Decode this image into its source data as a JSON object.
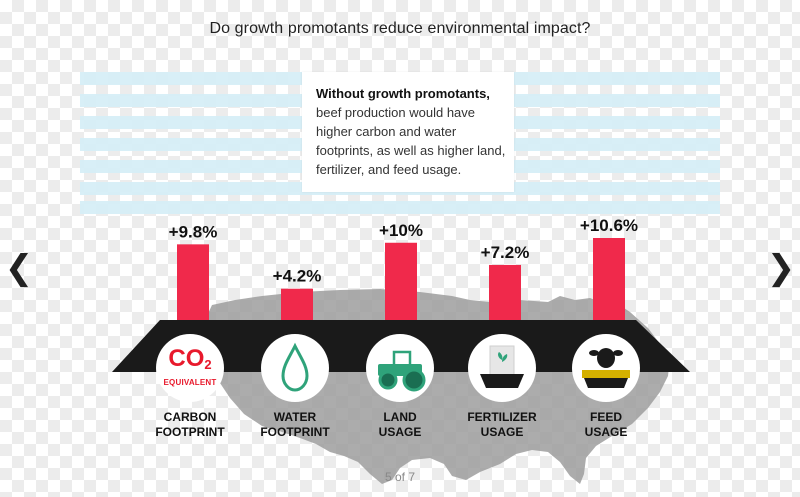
{
  "title": "Do growth promotants reduce environmental impact?",
  "callout": {
    "bold": "Without growth promotants,",
    "rest": "beef production would have higher carbon and water footprints, as well as higher land, fertilizer, and feed usage."
  },
  "nav": {
    "prev": "❮",
    "next": "❯"
  },
  "pager": "5 of 7",
  "co2_icon": {
    "main": "CO",
    "sub": "2",
    "caption": "EQUIVALENT"
  },
  "colors": {
    "bar": "#f0294b",
    "platform": "#1a1a1a",
    "icon_green": "#2fa37a",
    "map": "#9a9a9a",
    "stripe": "#d6eef7"
  },
  "icons": [
    "co2-icon",
    "water-drop-icon",
    "tractor-icon",
    "fertilizer-bag-icon",
    "cow-feed-icon"
  ],
  "chart_data": {
    "type": "bar",
    "title": "Do growth promotants reduce environmental impact?",
    "categories": [
      "CARBON\nFOOTPRINT",
      "WATER\nFOOTPRINT",
      "LAND\nUSAGE",
      "FERTILIZER\nUSAGE",
      "FEED\nUSAGE"
    ],
    "values": [
      9.8,
      4.2,
      10,
      7.2,
      10.6
    ],
    "data_labels": [
      "+9.8%",
      "+4.2%",
      "+10%",
      "+7.2%",
      "+10.6%"
    ],
    "ylim": [
      0,
      10.6
    ],
    "grid": false,
    "legend": "none"
  }
}
